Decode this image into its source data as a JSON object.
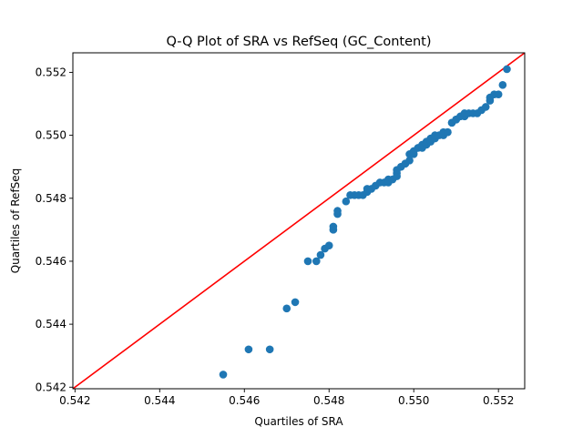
{
  "chart_data": {
    "type": "scatter",
    "title": "Q-Q Plot of SRA vs RefSeq (GC_Content)",
    "xlabel": "Quartiles of SRA",
    "ylabel": "Quartiles of RefSeq",
    "xlim": [
      0.54195,
      0.55262
    ],
    "ylim": [
      0.54195,
      0.55262
    ],
    "xticks": [
      0.542,
      0.544,
      0.546,
      0.548,
      0.55,
      0.552
    ],
    "yticks": [
      0.542,
      0.544,
      0.546,
      0.548,
      0.55,
      0.552
    ],
    "tick_labels": [
      "0.542",
      "0.544",
      "0.546",
      "0.548",
      "0.550",
      "0.552"
    ],
    "grid": false,
    "marker_color": "#1f77b4",
    "line_color": "#ff0000",
    "reference_line": [
      [
        0.54195,
        0.54195
      ],
      [
        0.55262,
        0.55262
      ]
    ],
    "points": [
      [
        0.5455,
        0.5424
      ],
      [
        0.5461,
        0.5432
      ],
      [
        0.5466,
        0.5432
      ],
      [
        0.547,
        0.5445
      ],
      [
        0.5472,
        0.5447
      ],
      [
        0.5475,
        0.546
      ],
      [
        0.5477,
        0.546
      ],
      [
        0.5478,
        0.5462
      ],
      [
        0.5479,
        0.5464
      ],
      [
        0.548,
        0.5465
      ],
      [
        0.5481,
        0.547
      ],
      [
        0.5481,
        0.5471
      ],
      [
        0.5482,
        0.5475
      ],
      [
        0.5482,
        0.5476
      ],
      [
        0.5484,
        0.5479
      ],
      [
        0.5485,
        0.5481
      ],
      [
        0.5486,
        0.5481
      ],
      [
        0.5487,
        0.5481
      ],
      [
        0.5488,
        0.5481
      ],
      [
        0.5489,
        0.5482
      ],
      [
        0.5489,
        0.5483
      ],
      [
        0.549,
        0.5483
      ],
      [
        0.5491,
        0.5484
      ],
      [
        0.5492,
        0.5485
      ],
      [
        0.5493,
        0.5485
      ],
      [
        0.5494,
        0.5485
      ],
      [
        0.5494,
        0.5486
      ],
      [
        0.5495,
        0.5486
      ],
      [
        0.5496,
        0.5487
      ],
      [
        0.5496,
        0.5488
      ],
      [
        0.5496,
        0.5489
      ],
      [
        0.5497,
        0.549
      ],
      [
        0.5498,
        0.5491
      ],
      [
        0.5498,
        0.5491
      ],
      [
        0.5499,
        0.5492
      ],
      [
        0.5499,
        0.5494
      ],
      [
        0.55,
        0.5494
      ],
      [
        0.55,
        0.5495
      ],
      [
        0.5501,
        0.5496
      ],
      [
        0.5502,
        0.5496
      ],
      [
        0.5502,
        0.5497
      ],
      [
        0.5503,
        0.5497
      ],
      [
        0.5503,
        0.5498
      ],
      [
        0.5504,
        0.5498
      ],
      [
        0.5504,
        0.5499
      ],
      [
        0.5505,
        0.5499
      ],
      [
        0.5505,
        0.55
      ],
      [
        0.5506,
        0.55
      ],
      [
        0.5507,
        0.55
      ],
      [
        0.5507,
        0.5501
      ],
      [
        0.5508,
        0.5501
      ],
      [
        0.5508,
        0.5501
      ],
      [
        0.5509,
        0.5504
      ],
      [
        0.5509,
        0.5504
      ],
      [
        0.551,
        0.5505
      ],
      [
        0.551,
        0.5505
      ],
      [
        0.5511,
        0.5506
      ],
      [
        0.5512,
        0.5506
      ],
      [
        0.5512,
        0.5507
      ],
      [
        0.5513,
        0.5507
      ],
      [
        0.5514,
        0.5507
      ],
      [
        0.5515,
        0.5507
      ],
      [
        0.5516,
        0.5508
      ],
      [
        0.5517,
        0.5509
      ],
      [
        0.5518,
        0.5511
      ],
      [
        0.5518,
        0.5512
      ],
      [
        0.5519,
        0.5513
      ],
      [
        0.552,
        0.5513
      ],
      [
        0.5521,
        0.5516
      ],
      [
        0.5522,
        0.5521
      ]
    ]
  }
}
